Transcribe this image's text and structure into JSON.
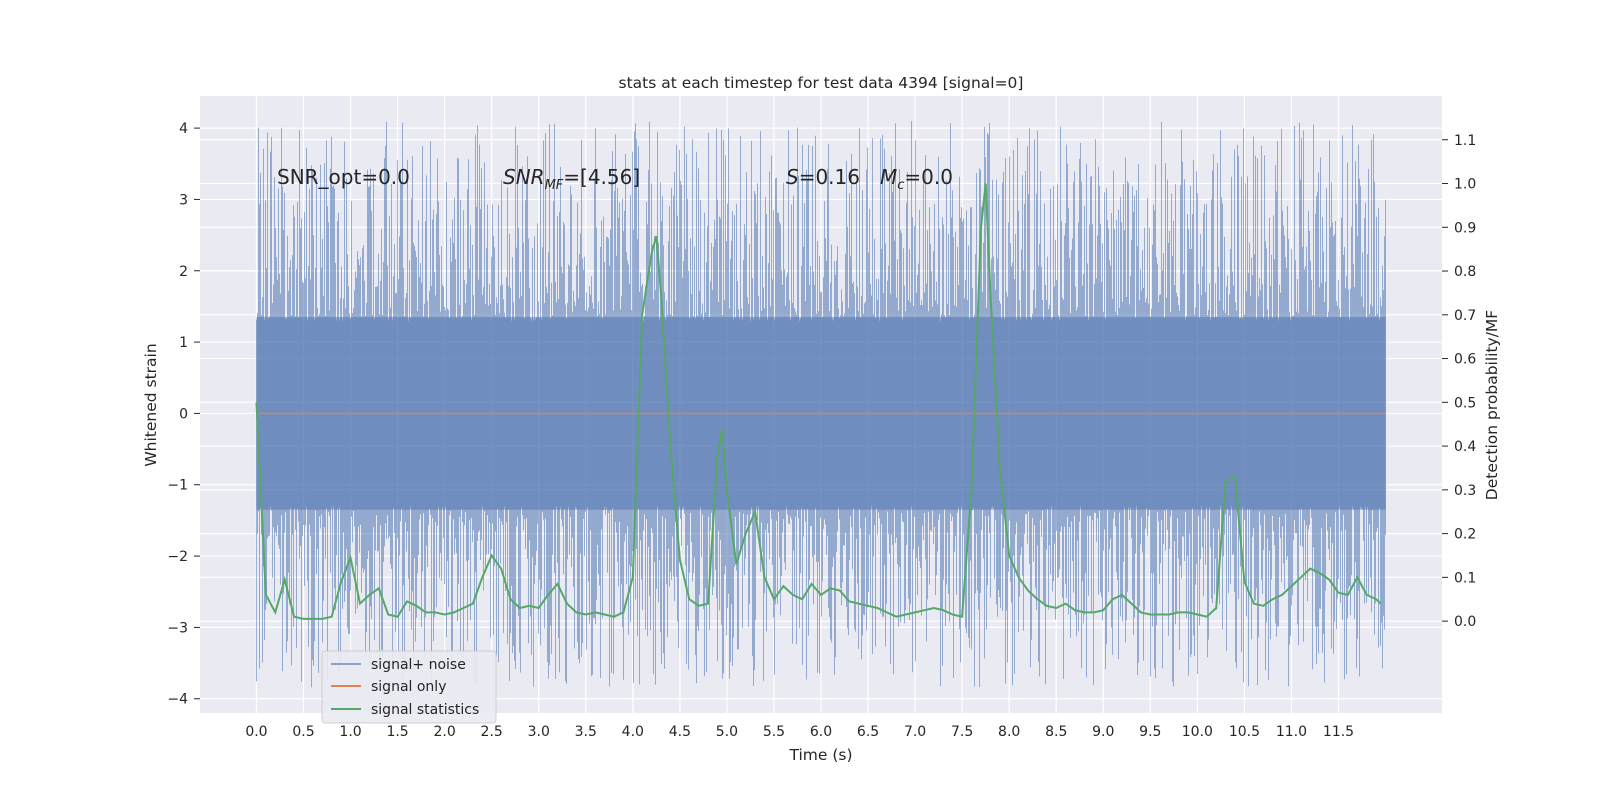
{
  "chart_data": {
    "type": "line",
    "title": "stats at each timestep for test data 4394 [signal=0]",
    "xlabel": "Time (s)",
    "ylabel": "Whitened strain",
    "y2label": "Detection probability/MF",
    "xlim": [
      -0.6,
      12.6
    ],
    "ylim": [
      -4.2,
      4.45
    ],
    "y2lim": [
      -0.21,
      1.2
    ],
    "xticks": [
      0.0,
      0.5,
      1.0,
      1.5,
      2.0,
      2.5,
      3.0,
      3.5,
      4.0,
      4.5,
      5.0,
      5.5,
      6.0,
      6.5,
      7.0,
      7.5,
      8.0,
      8.5,
      9.0,
      9.5,
      10.0,
      10.5,
      11.0,
      11.5
    ],
    "xtick_labels": [
      "0.0",
      "0.5",
      "1.0",
      "1.5",
      "2.0",
      "2.5",
      "3.0",
      "3.5",
      "4.0",
      "4.5",
      "5.0",
      "5.5",
      "6.0",
      "6.5",
      "7.0",
      "7.5",
      "8.0",
      "8.5",
      "9.0",
      "9.5",
      "10.0",
      "10.5",
      "11.0",
      "11.5"
    ],
    "yticks": [
      -4,
      -3,
      -2,
      -1,
      0,
      1,
      2,
      3,
      4
    ],
    "ytick_labels": [
      "−4",
      "−3",
      "−2",
      "−1",
      "0",
      "1",
      "2",
      "3",
      "4"
    ],
    "y2ticks": [
      0.0,
      0.1,
      0.2,
      0.3,
      0.4,
      0.5,
      0.6,
      0.7,
      0.8,
      0.9,
      1.0,
      1.1
    ],
    "y2tick_labels": [
      "0.0",
      "0.1",
      "0.2",
      "0.3",
      "0.4",
      "0.5",
      "0.6",
      "0.7",
      "0.8",
      "0.9",
      "1.0",
      "1.1"
    ],
    "grid": true,
    "legend_position": "lower-left",
    "annotations": {
      "snr_opt": "SNR_opt=0.0",
      "snr_mf_main": "SNR",
      "snr_mf_sub": "MF",
      "snr_mf_value": "=[4.56]",
      "s_symbol": "S",
      "s_value": "=0.16",
      "mc_main": "M",
      "mc_sub": "c",
      "mc_value": "=0.0"
    },
    "series": [
      {
        "name": "signal+ noise",
        "axis": "left",
        "color": "#4c72b0",
        "x_start": 0.0,
        "x_end": 12.0,
        "description_envelope": {
          "typical_min": -2.7,
          "typical_max": 2.7,
          "max": 4.1,
          "min": -3.85
        }
      },
      {
        "name": "signal only",
        "axis": "left",
        "color": "#dd8452",
        "x": [
          0.0,
          12.0
        ],
        "y": [
          0.0,
          0.0
        ]
      },
      {
        "name": "signal statistics",
        "axis": "right",
        "color": "#55a868",
        "x": [
          0.0,
          0.1,
          0.2,
          0.3,
          0.4,
          0.5,
          0.6,
          0.7,
          0.8,
          0.9,
          1.0,
          1.1,
          1.2,
          1.3,
          1.4,
          1.5,
          1.6,
          1.7,
          1.8,
          1.9,
          2.0,
          2.1,
          2.2,
          2.3,
          2.4,
          2.5,
          2.6,
          2.7,
          2.8,
          2.9,
          3.0,
          3.1,
          3.2,
          3.3,
          3.4,
          3.5,
          3.6,
          3.7,
          3.8,
          3.9,
          4.0,
          4.1,
          4.2,
          4.25,
          4.3,
          4.4,
          4.5,
          4.6,
          4.7,
          4.8,
          4.9,
          4.95,
          5.0,
          5.1,
          5.2,
          5.3,
          5.4,
          5.5,
          5.6,
          5.7,
          5.8,
          5.9,
          6.0,
          6.1,
          6.2,
          6.3,
          6.4,
          6.5,
          6.6,
          6.7,
          6.8,
          6.9,
          7.0,
          7.1,
          7.2,
          7.3,
          7.4,
          7.5,
          7.6,
          7.7,
          7.75,
          7.8,
          7.9,
          8.0,
          8.1,
          8.2,
          8.3,
          8.4,
          8.5,
          8.6,
          8.7,
          8.8,
          8.9,
          9.0,
          9.1,
          9.2,
          9.3,
          9.4,
          9.5,
          9.6,
          9.7,
          9.8,
          9.9,
          10.0,
          10.1,
          10.2,
          10.3,
          10.4,
          10.5,
          10.6,
          10.7,
          10.8,
          10.9,
          11.0,
          11.1,
          11.2,
          11.3,
          11.4,
          11.5,
          11.6,
          11.7,
          11.8,
          11.9,
          11.95
        ],
        "y": [
          0.5,
          0.06,
          0.02,
          0.095,
          0.01,
          0.005,
          0.005,
          0.005,
          0.01,
          0.09,
          0.145,
          0.04,
          0.06,
          0.075,
          0.015,
          0.01,
          0.045,
          0.035,
          0.02,
          0.02,
          0.015,
          0.02,
          0.03,
          0.04,
          0.1,
          0.15,
          0.12,
          0.05,
          0.03,
          0.035,
          0.03,
          0.06,
          0.085,
          0.04,
          0.02,
          0.015,
          0.02,
          0.015,
          0.01,
          0.02,
          0.1,
          0.7,
          0.84,
          0.88,
          0.75,
          0.4,
          0.14,
          0.05,
          0.035,
          0.04,
          0.38,
          0.44,
          0.3,
          0.13,
          0.2,
          0.25,
          0.1,
          0.05,
          0.08,
          0.06,
          0.05,
          0.085,
          0.06,
          0.075,
          0.07,
          0.045,
          0.04,
          0.035,
          0.03,
          0.02,
          0.01,
          0.015,
          0.02,
          0.025,
          0.03,
          0.025,
          0.015,
          0.01,
          0.3,
          0.9,
          1.0,
          0.75,
          0.35,
          0.15,
          0.1,
          0.07,
          0.05,
          0.035,
          0.03,
          0.04,
          0.025,
          0.02,
          0.02,
          0.025,
          0.05,
          0.06,
          0.04,
          0.02,
          0.015,
          0.015,
          0.015,
          0.02,
          0.02,
          0.015,
          0.01,
          0.03,
          0.32,
          0.33,
          0.09,
          0.04,
          0.035,
          0.05,
          0.06,
          0.08,
          0.1,
          0.12,
          0.11,
          0.095,
          0.065,
          0.06,
          0.1,
          0.06,
          0.05,
          0.04
        ]
      }
    ]
  }
}
